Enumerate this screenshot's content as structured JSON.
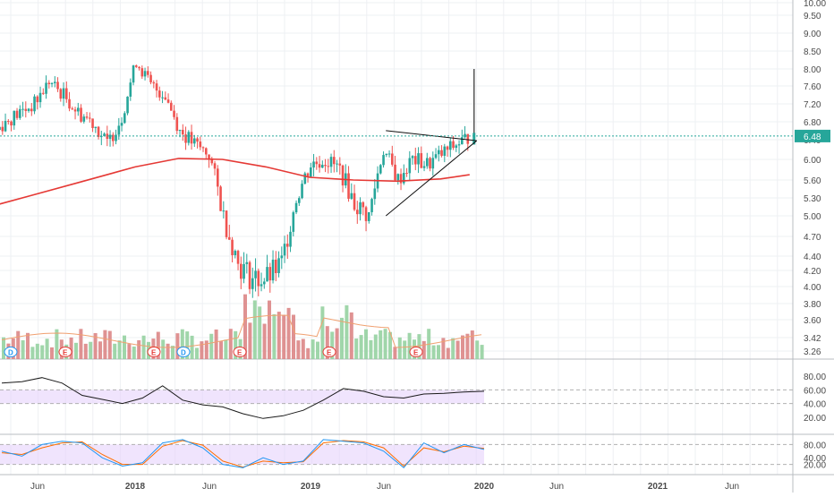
{
  "colors": {
    "up": "#26a69a",
    "down": "#ef5350",
    "ma": "#e53935",
    "vol_up": "#8fcf9b",
    "vol_down": "#d97f7f",
    "vol_ma": "#f0a070",
    "rsi_line": "#1a1a1a",
    "stoch_k": "#2196f3",
    "stoch_d": "#ff6d00",
    "band": "#e6d2fb",
    "grid": "#eef0f3",
    "price_line": "#26a69a",
    "axis_text": "#4a4a4a"
  },
  "chart_data": [
    {
      "type": "candlestick",
      "title": "",
      "current_price_label": "6.48",
      "y_ticks": [
        "10.00",
        "9.50",
        "9.00",
        "8.50",
        "8.00",
        "7.60",
        "7.20",
        "6.80",
        "6.40",
        "6.00",
        "5.60",
        "5.30",
        "5.00",
        "4.70",
        "4.40",
        "4.20",
        "4.00",
        "3.80",
        "3.60",
        "3.42",
        "3.26"
      ],
      "x_ticks": [
        "Jun",
        "2018",
        "Jun",
        "2019",
        "Jun",
        "2020",
        "Jun",
        "2021",
        "Jun"
      ],
      "y_scale": "log",
      "moving_average_200": [
        {
          "date": "2017-03",
          "value": 5.15
        },
        {
          "date": "2017-06",
          "value": 5.35
        },
        {
          "date": "2017-09",
          "value": 5.55
        },
        {
          "date": "2018-01",
          "value": 5.85
        },
        {
          "date": "2018-04",
          "value": 6.02
        },
        {
          "date": "2018-07",
          "value": 6.0
        },
        {
          "date": "2018-10",
          "value": 5.85
        },
        {
          "date": "2019-01",
          "value": 5.65
        },
        {
          "date": "2019-04",
          "value": 5.6
        },
        {
          "date": "2019-07",
          "value": 5.58
        },
        {
          "date": "2019-10",
          "value": 5.62
        },
        {
          "date": "2019-12",
          "value": 5.7
        }
      ],
      "candles_weekly_close": [
        {
          "date": "2017-03",
          "value": 6.5
        },
        {
          "date": "2017-04",
          "value": 6.8
        },
        {
          "date": "2017-05",
          "value": 7.0
        },
        {
          "date": "2017-06",
          "value": 7.2
        },
        {
          "date": "2017-07",
          "value": 7.7
        },
        {
          "date": "2017-08",
          "value": 7.4
        },
        {
          "date": "2017-09",
          "value": 7.0
        },
        {
          "date": "2017-10",
          "value": 6.8
        },
        {
          "date": "2017-11",
          "value": 6.3
        },
        {
          "date": "2017-12",
          "value": 6.9
        },
        {
          "date": "2018-01",
          "value": 8.2
        },
        {
          "date": "2018-02",
          "value": 7.6
        },
        {
          "date": "2018-03",
          "value": 7.4
        },
        {
          "date": "2018-04",
          "value": 6.6
        },
        {
          "date": "2018-05",
          "value": 6.3
        },
        {
          "date": "2018-06",
          "value": 6.1
        },
        {
          "date": "2018-07",
          "value": 5.0
        },
        {
          "date": "2018-08",
          "value": 4.3
        },
        {
          "date": "2018-09",
          "value": 4.1
        },
        {
          "date": "2018-10",
          "value": 4.1
        },
        {
          "date": "2018-11",
          "value": 4.3
        },
        {
          "date": "2018-12",
          "value": 5.3
        },
        {
          "date": "2019-01",
          "value": 5.9
        },
        {
          "date": "2019-02",
          "value": 6.0
        },
        {
          "date": "2019-03",
          "value": 5.8
        },
        {
          "date": "2019-04",
          "value": 5.2
        },
        {
          "date": "2019-05",
          "value": 5.0
        },
        {
          "date": "2019-06",
          "value": 6.2
        },
        {
          "date": "2019-07",
          "value": 5.6
        },
        {
          "date": "2019-08",
          "value": 6.0
        },
        {
          "date": "2019-09",
          "value": 5.9
        },
        {
          "date": "2019-10",
          "value": 6.1
        },
        {
          "date": "2019-11",
          "value": 6.3
        },
        {
          "date": "2019-12",
          "value": 6.48
        }
      ],
      "earnings_markers": [
        "E",
        "E",
        "E",
        "E",
        "E"
      ],
      "dividend_markers": [
        "D",
        "D",
        "D"
      ]
    },
    {
      "type": "line",
      "name": "RSI",
      "y_ticks": [
        "80.00",
        "60.00",
        "40.00",
        "20.00"
      ],
      "band": [
        40,
        60
      ],
      "values": [
        70,
        72,
        78,
        70,
        52,
        46,
        40,
        48,
        66,
        45,
        38,
        35,
        25,
        18,
        22,
        30,
        45,
        62,
        58,
        50,
        48,
        54,
        55,
        57,
        58
      ]
    },
    {
      "type": "line",
      "name": "Stochastic",
      "y_ticks": [
        "80.00",
        "40.00",
        "20.00"
      ],
      "band": [
        20,
        80
      ],
      "k_values": [
        60,
        45,
        80,
        90,
        85,
        40,
        15,
        25,
        85,
        95,
        70,
        20,
        10,
        40,
        20,
        30,
        95,
        90,
        85,
        60,
        10,
        85,
        55,
        80,
        65
      ],
      "d_values": [
        55,
        50,
        70,
        85,
        88,
        50,
        20,
        20,
        75,
        92,
        78,
        30,
        12,
        30,
        25,
        28,
        85,
        92,
        88,
        70,
        15,
        70,
        58,
        75,
        68
      ]
    }
  ]
}
